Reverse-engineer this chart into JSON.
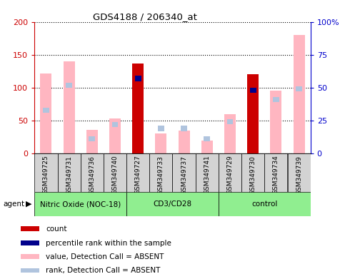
{
  "title": "GDS4188 / 206340_at",
  "samples": [
    "GSM349725",
    "GSM349731",
    "GSM349736",
    "GSM349740",
    "GSM349727",
    "GSM349733",
    "GSM349737",
    "GSM349741",
    "GSM349729",
    "GSM349730",
    "GSM349734",
    "GSM349739"
  ],
  "groups": [
    {
      "label": "Nitric Oxide (NOC-18)",
      "start": 0,
      "end": 4,
      "color": "#90ee90"
    },
    {
      "label": "CD3/CD28",
      "start": 4,
      "end": 8,
      "color": "#90ee90"
    },
    {
      "label": "control",
      "start": 8,
      "end": 12,
      "color": "#90ee90"
    }
  ],
  "value_absent": [
    122,
    140,
    36,
    53,
    null,
    30,
    35,
    20,
    60,
    null,
    95,
    180
  ],
  "rank_absent_pct": [
    33,
    52,
    11,
    22,
    null,
    19,
    19,
    11,
    24,
    null,
    41,
    49
  ],
  "count": [
    null,
    null,
    null,
    null,
    137,
    null,
    null,
    null,
    null,
    120,
    null,
    null
  ],
  "percentile_rank_pct": [
    null,
    null,
    null,
    null,
    57,
    null,
    null,
    null,
    null,
    48,
    null,
    null
  ],
  "ylim_left": [
    0,
    200
  ],
  "ylim_right": [
    0,
    100
  ],
  "yticks_left": [
    0,
    50,
    100,
    150,
    200
  ],
  "yticks_right": [
    0,
    25,
    50,
    75,
    100
  ],
  "yticklabels_right": [
    "0",
    "25",
    "50",
    "75",
    "100%"
  ],
  "bar_width": 0.5,
  "color_count": "#cc0000",
  "color_percentile": "#00008b",
  "color_value_absent": "#ffb6c1",
  "color_rank_absent": "#b0c4de",
  "left_tick_color": "#cc0000",
  "right_tick_color": "#0000cc",
  "agent_label": "agent",
  "legend_items": [
    {
      "color": "#cc0000",
      "label": "count"
    },
    {
      "color": "#00008b",
      "label": "percentile rank within the sample"
    },
    {
      "color": "#ffb6c1",
      "label": "value, Detection Call = ABSENT"
    },
    {
      "color": "#b0c4de",
      "label": "rank, Detection Call = ABSENT"
    }
  ]
}
